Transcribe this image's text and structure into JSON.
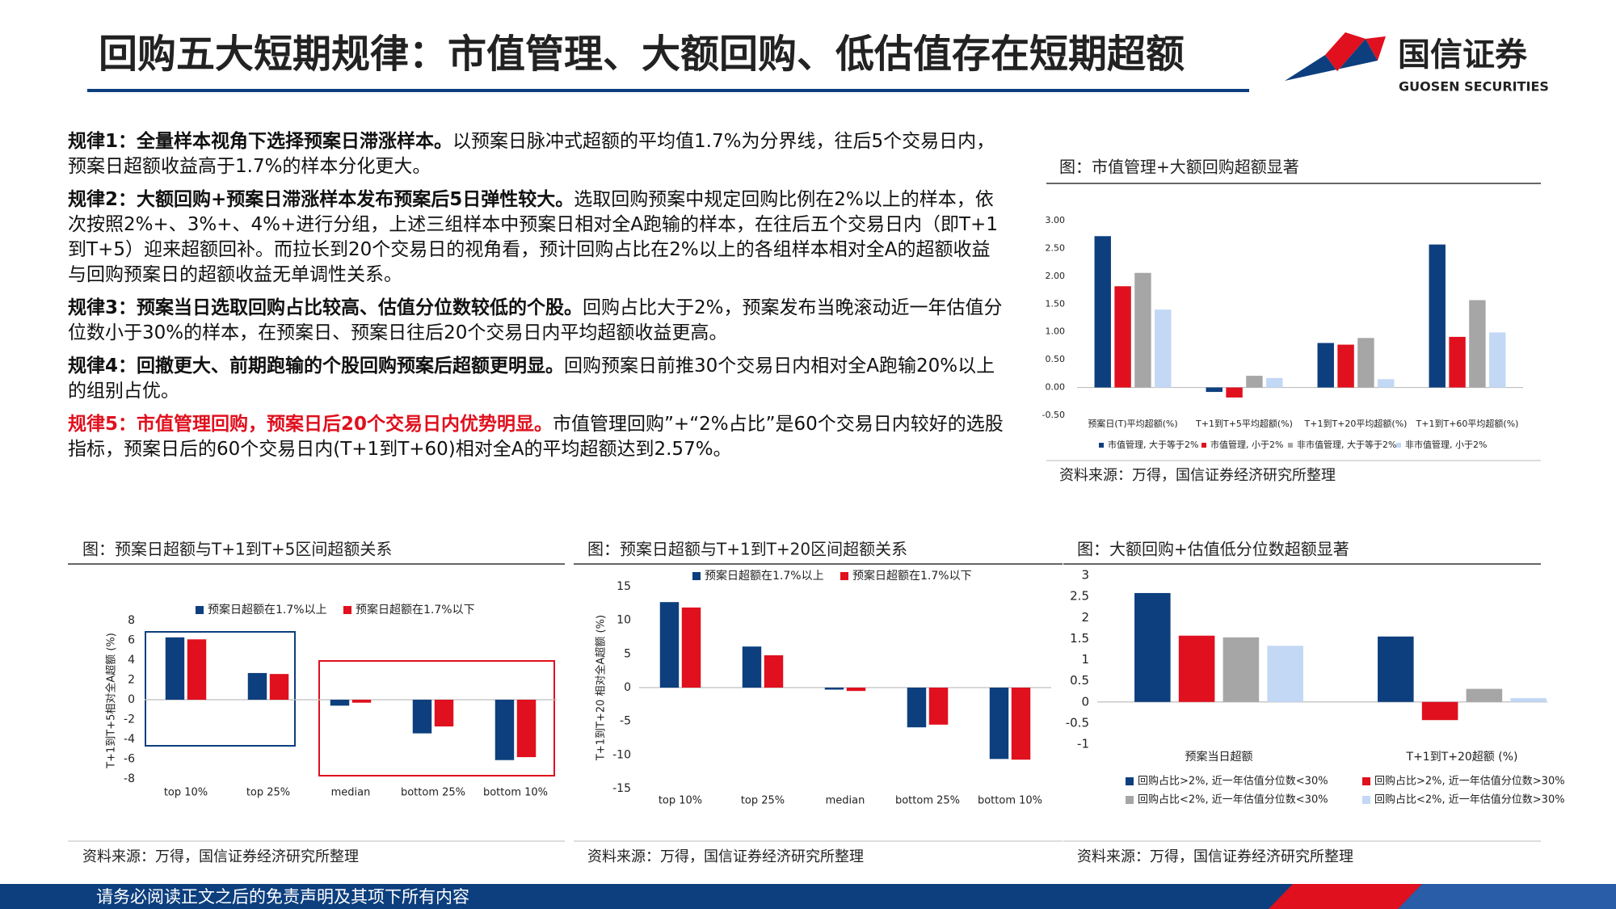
{
  "header": {
    "title": "回购五大短期规律：市值管理、大额回购、低估值存在短期超额",
    "logo_cn": "国信证券",
    "logo_en": "GUOSEN SECURITIES"
  },
  "rules": [
    {
      "heading": "规律1：全量样本视角下选择预案日滞涨样本。",
      "text": "以预案日脉冲式超额的平均值1.7%为分界线，往后5个交易日内，预案日超额收益高于1.7%的样本分化更大。"
    },
    {
      "heading": "规律2：大额回购+预案日滞涨样本发布预案后5日弹性较大。",
      "text": "选取回购预案中规定回购比例在2%以上的样本，依次按照2%+、3%+、4%+进行分组，上述三组样本中预案日相对全A跑输的样本，在往后五个交易日内（即T+1到T+5）迎来超额回补。而拉长到20个交易日的视角看，预计回购占比在2%以上的各组样本相对全A的超额收益与回购预案日的超额收益无单调性关系。"
    },
    {
      "heading": "规律3：预案当日选取回购占比较高、估值分位数较低的个股。",
      "text": "回购占比大于2%，预案发布当晚滚动近一年估值分位数小于30%的样本，在预案日、预案日往后20个交易日内平均超额收益更高。"
    },
    {
      "heading": "规律4：回撤更大、前期跑输的个股回购预案后超额更明显。",
      "text": "回购预案日前推30个交易日内相对全A跑输20%以上的组别占优。"
    },
    {
      "heading": "规律5：市值管理回购，预案日后20个交易日内优势明显。",
      "text": "市值管理回购”+“2%占比”是60个交易日内较好的选股指标，预案日后的60个交易日内(T+1到T+60)相对全A的平均超额达到2.57%。"
    }
  ],
  "footer": "请务必阅读正文之后的免责声明及其项下所有内容",
  "chart_data": [
    {
      "type": "bar",
      "title": "图：市值管理+大额回购超额显著",
      "source": "资料来源：万得，国信证券经济研究所整理",
      "categories": [
        "预案日(T)平均超额(%)",
        "T+1到T+5平均超额(%)",
        "T+1到T+20平均超额(%)",
        "T+1到T+60平均超额(%)"
      ],
      "series": [
        {
          "name": "市值管理, 大于等于2%",
          "color": "#0d3f7e",
          "values": [
            2.72,
            -0.08,
            0.8,
            2.57
          ]
        },
        {
          "name": "市值管理, 小于2%",
          "color": "#e0101e",
          "values": [
            1.82,
            -0.18,
            0.77,
            0.91
          ]
        },
        {
          "name": "非市值管理, 大于等于2%",
          "color": "#a6a6a6",
          "values": [
            2.06,
            0.21,
            0.89,
            1.57
          ]
        },
        {
          "name": "非市值管理, 小于2%",
          "color": "#c3d8f5",
          "values": [
            1.4,
            0.17,
            0.15,
            0.99
          ]
        }
      ],
      "ylim": [
        -0.5,
        3.0
      ],
      "yticks": [
        {
          "value": 3,
          "label": "3.00"
        },
        {
          "value": 2.5,
          "label": "2.50"
        },
        {
          "value": 2,
          "label": "2.00"
        },
        {
          "value": 1.5,
          "label": "1.50"
        },
        {
          "value": 1,
          "label": "1.00"
        },
        {
          "value": 0.5,
          "label": "0.50"
        },
        {
          "value": 0,
          "label": "0.00"
        },
        {
          "value": -0.5,
          "label": "-0.50"
        }
      ]
    },
    {
      "type": "bar",
      "title": "图：预案日超额与T+1到T+5区间超额关系",
      "source": "资料来源：万得，国信证券经济研究所整理",
      "y_label": "T+1到T+5相对全A超额 (%)",
      "categories": [
        "top 10%",
        "top 25%",
        "median",
        "bottom 25%",
        "bottom 10%"
      ],
      "series": [
        {
          "name": "预案日超额在1.7%以上",
          "color": "#0d3f7e",
          "values": [
            6.3,
            2.7,
            -0.6,
            -3.4,
            -6.1
          ]
        },
        {
          "name": "预案日超额在1.7%以下",
          "color": "#e0101e",
          "values": [
            6.1,
            2.6,
            -0.3,
            -2.7,
            -5.8
          ]
        }
      ],
      "ylim": [
        -8,
        8
      ],
      "yticks": [
        8,
        6,
        4,
        2,
        0,
        -2,
        -4,
        -6,
        -8
      ]
    },
    {
      "type": "bar",
      "title": "图：预案日超额与T+1到T+20区间超额关系",
      "source": "资料来源：万得，国信证券经济研究所整理",
      "y_label": "T+1到T+20 相对全A超额 (%)",
      "categories": [
        "top 10%",
        "top 25%",
        "median",
        "bottom 25%",
        "bottom 10%"
      ],
      "series": [
        {
          "name": "预案日超额在1.7%以上",
          "color": "#0d3f7e",
          "values": [
            12.7,
            6.1,
            -0.3,
            -5.9,
            -10.6
          ]
        },
        {
          "name": "预案日超额在1.7%以下",
          "color": "#e0101e",
          "values": [
            11.9,
            4.8,
            -0.5,
            -5.5,
            -10.7
          ]
        }
      ],
      "ylim": [
        -15,
        15
      ],
      "yticks": [
        15,
        10,
        5,
        0,
        -5,
        -10,
        -15
      ]
    },
    {
      "type": "bar",
      "title": "图：大额回购+估值低分位数超额显著",
      "source": "资料来源：万得，国信证券经济研究所整理",
      "categories": [
        "预案当日超额",
        "T+1到T+20超额 (%)"
      ],
      "series": [
        {
          "name": "回购占比>2%, 近一年估值分位数<30%",
          "color": "#0d3f7e",
          "values": [
            2.58,
            1.55
          ]
        },
        {
          "name": "回购占比>2%, 近一年估值分位数>30%",
          "color": "#e0101e",
          "values": [
            1.57,
            -0.43
          ]
        },
        {
          "name": "回购占比<2%, 近一年估值分位数<30%",
          "color": "#a6a6a6",
          "values": [
            1.53,
            0.31
          ]
        },
        {
          "name": "回购占比<2%, 近一年估值分位数>30%",
          "color": "#c3d8f5",
          "values": [
            1.33,
            0.09
          ]
        }
      ],
      "ylim": [
        -1,
        3
      ],
      "yticks": [
        3,
        2.5,
        2,
        1.5,
        1,
        0.5,
        0,
        -0.5,
        -1
      ]
    }
  ]
}
